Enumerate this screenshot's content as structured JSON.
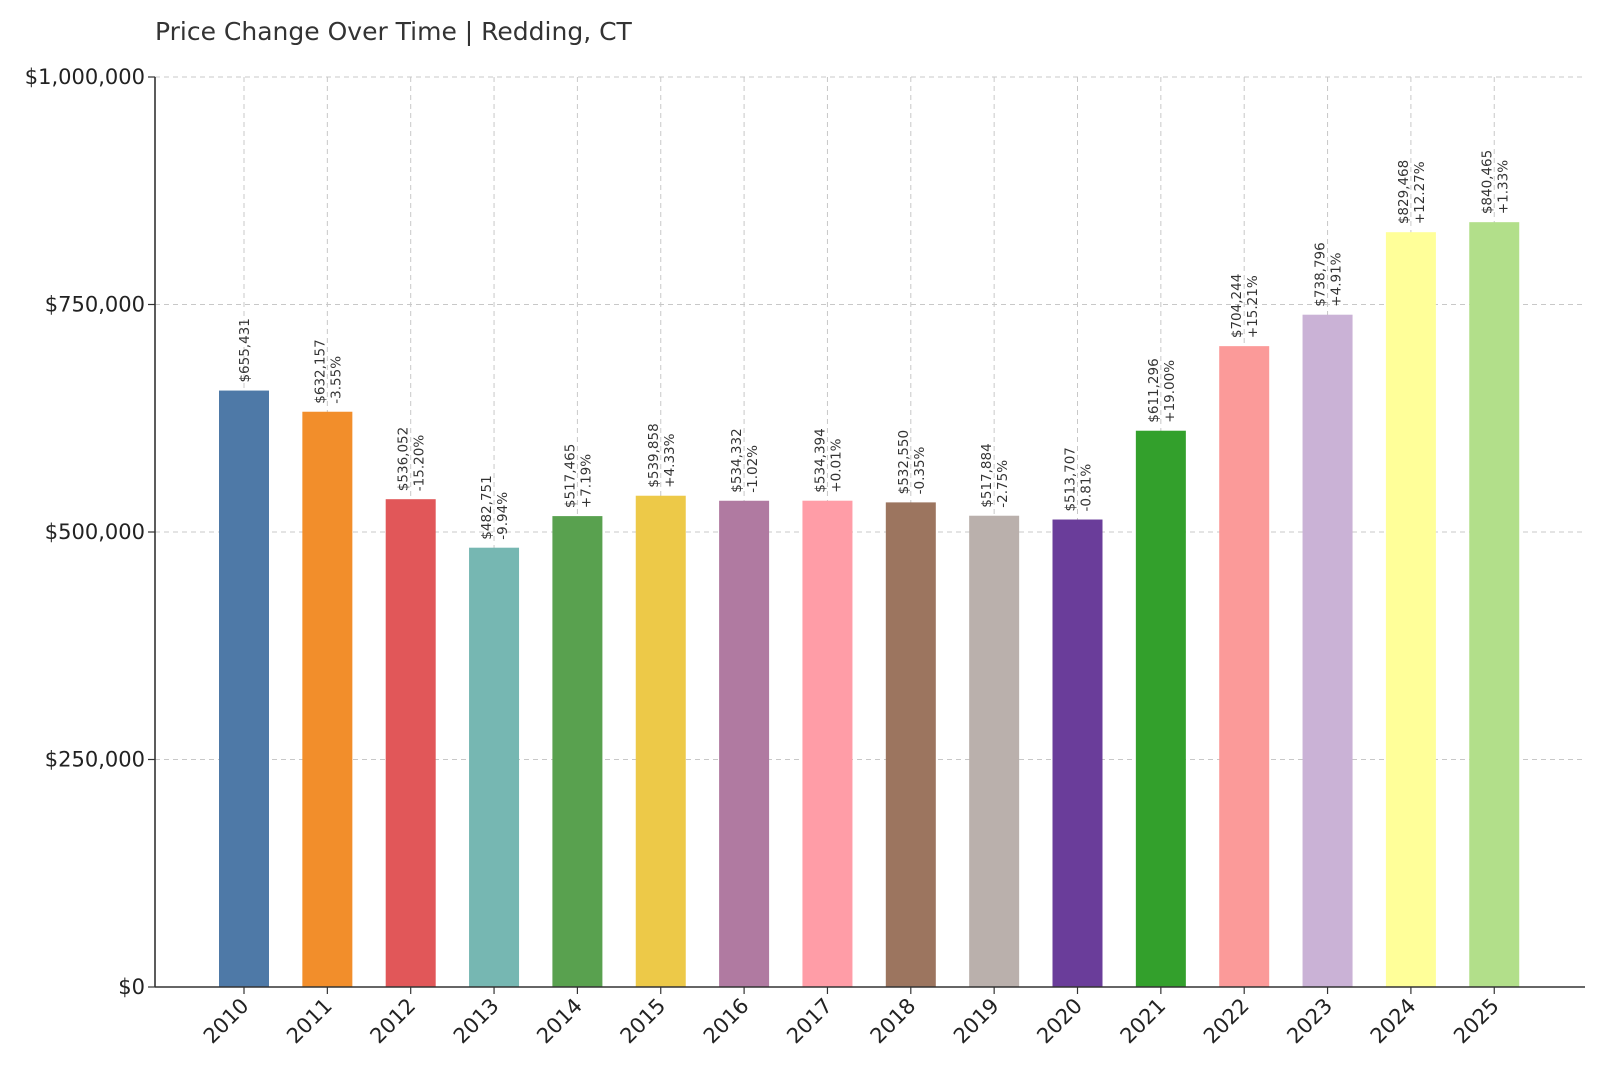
{
  "chart_data": {
    "type": "bar",
    "title": "Price Change Over Time | Redding, CT",
    "xlabel": "",
    "ylabel": "",
    "ylim": [
      0,
      1000000
    ],
    "yticks": [
      0,
      250000,
      500000,
      750000,
      1000000
    ],
    "ytick_labels": [
      "$0",
      "$250,000",
      "$500,000",
      "$750,000",
      "$1,000,000"
    ],
    "grid": true,
    "categories": [
      "2010",
      "2011",
      "2012",
      "2013",
      "2014",
      "2015",
      "2016",
      "2017",
      "2018",
      "2019",
      "2020",
      "2021",
      "2022",
      "2023",
      "2024",
      "2025"
    ],
    "values": [
      655431,
      632157,
      536052,
      482751,
      517465,
      539858,
      534332,
      534394,
      532550,
      517884,
      513707,
      611296,
      704244,
      738796,
      829468,
      840465
    ],
    "value_labels": [
      "$655,431",
      "$632,157",
      "$536,052",
      "$482,751",
      "$517,465",
      "$539,858",
      "$534,332",
      "$534,394",
      "$532,550",
      "$517,884",
      "$513,707",
      "$611,296",
      "$704,244",
      "$738,796",
      "$829,468",
      "$840,465"
    ],
    "change_labels": [
      "",
      "-3.55%",
      "-15.20%",
      "-9.94%",
      "+7.19%",
      "+4.33%",
      "-1.02%",
      "+0.01%",
      "-0.35%",
      "-2.75%",
      "-0.81%",
      "+19.00%",
      "+15.21%",
      "+4.91%",
      "+12.27%",
      "+1.33%"
    ],
    "colors": [
      "#4e79a7",
      "#f28e2b",
      "#e15759",
      "#76b7b2",
      "#59a14f",
      "#edc948",
      "#b07aa1",
      "#ff9da7",
      "#9c755f",
      "#bab0ac",
      "#6a3d9a",
      "#33a02c",
      "#fb9a99",
      "#cab2d6",
      "#ffff99",
      "#b2df8a"
    ]
  }
}
